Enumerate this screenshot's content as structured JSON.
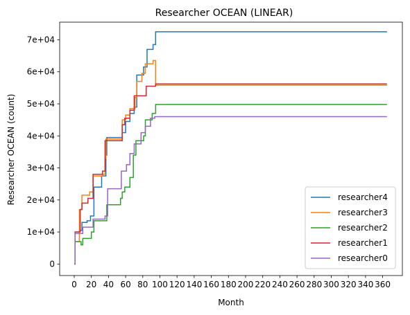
{
  "chart_data": {
    "type": "line",
    "title": "Researcher OCEAN (LINEAR)",
    "xlabel": "Month",
    "ylabel": "Researcher OCEAN (count)",
    "xlim": [
      -17,
      383
    ],
    "ylim": [
      -3600,
      75500
    ],
    "x_ticks": [
      0,
      20,
      40,
      60,
      80,
      100,
      120,
      140,
      160,
      180,
      200,
      220,
      240,
      260,
      280,
      300,
      320,
      340,
      360
    ],
    "x_tick_labels": [
      "0",
      "20",
      "40",
      "60",
      "80",
      "100",
      "120",
      "140",
      "160",
      "180",
      "200",
      "220",
      "240",
      "260",
      "280",
      "300",
      "320",
      "340",
      "360"
    ],
    "y_ticks": [
      0,
      10000,
      20000,
      30000,
      40000,
      50000,
      60000,
      70000
    ],
    "y_tick_labels": [
      "0",
      "1e+04",
      "2e+04",
      "3e+04",
      "4e+04",
      "5e+04",
      "6e+04",
      "7e+04"
    ],
    "grid": false,
    "legend_position": "lower-right",
    "step": "post",
    "series": [
      {
        "name": "researcher4",
        "color": "#1f77b4",
        "points": [
          [
            0,
            0
          ],
          [
            1,
            10000
          ],
          [
            6,
            10500
          ],
          [
            9,
            13000
          ],
          [
            15,
            13500
          ],
          [
            19,
            15000
          ],
          [
            23,
            24000
          ],
          [
            32,
            27500
          ],
          [
            37,
            34000
          ],
          [
            38,
            39500
          ],
          [
            56,
            41000
          ],
          [
            60,
            44500
          ],
          [
            65,
            47000
          ],
          [
            70,
            49000
          ],
          [
            73,
            59000
          ],
          [
            81,
            61500
          ],
          [
            85,
            67000
          ],
          [
            92,
            68500
          ],
          [
            95,
            72500
          ],
          [
            365,
            72500
          ]
        ]
      },
      {
        "name": "researcher3",
        "color": "#ff7f0e",
        "points": [
          [
            0,
            0
          ],
          [
            1,
            7000
          ],
          [
            6,
            17000
          ],
          [
            9,
            21500
          ],
          [
            18,
            22500
          ],
          [
            22,
            27500
          ],
          [
            33,
            28000
          ],
          [
            36,
            33000
          ],
          [
            37,
            39000
          ],
          [
            56,
            45000
          ],
          [
            60,
            46500
          ],
          [
            65,
            48500
          ],
          [
            71,
            52000
          ],
          [
            73,
            57000
          ],
          [
            79,
            59500
          ],
          [
            83,
            62500
          ],
          [
            92,
            63500
          ],
          [
            95,
            55800
          ],
          [
            365,
            55800
          ]
        ]
      },
      {
        "name": "researcher2",
        "color": "#2ca02c",
        "points": [
          [
            0,
            0
          ],
          [
            1,
            7000
          ],
          [
            8,
            6000
          ],
          [
            10,
            8000
          ],
          [
            20,
            10000
          ],
          [
            23,
            13500
          ],
          [
            38,
            18500
          ],
          [
            54,
            20500
          ],
          [
            56,
            22500
          ],
          [
            59,
            24000
          ],
          [
            65,
            27000
          ],
          [
            69,
            34000
          ],
          [
            72,
            38500
          ],
          [
            81,
            40000
          ],
          [
            83,
            45000
          ],
          [
            91,
            47000
          ],
          [
            95,
            49800
          ],
          [
            365,
            49800
          ]
        ]
      },
      {
        "name": "researcher1",
        "color": "#d62728",
        "points": [
          [
            0,
            0
          ],
          [
            1,
            10000
          ],
          [
            7,
            17000
          ],
          [
            9,
            19000
          ],
          [
            16,
            20500
          ],
          [
            22,
            28000
          ],
          [
            33,
            29000
          ],
          [
            36,
            38500
          ],
          [
            56,
            43500
          ],
          [
            59,
            45500
          ],
          [
            65,
            48000
          ],
          [
            70,
            52500
          ],
          [
            84,
            55500
          ],
          [
            95,
            56200
          ],
          [
            365,
            56200
          ]
        ]
      },
      {
        "name": "researcher0",
        "color": "#9467bd",
        "points": [
          [
            0,
            0
          ],
          [
            1,
            9500
          ],
          [
            10,
            11500
          ],
          [
            22,
            14000
          ],
          [
            36,
            15000
          ],
          [
            39,
            23500
          ],
          [
            55,
            29000
          ],
          [
            61,
            31000
          ],
          [
            65,
            34500
          ],
          [
            70,
            37500
          ],
          [
            78,
            41000
          ],
          [
            83,
            43000
          ],
          [
            89,
            45500
          ],
          [
            94,
            46000
          ],
          [
            365,
            46000
          ]
        ]
      }
    ]
  }
}
